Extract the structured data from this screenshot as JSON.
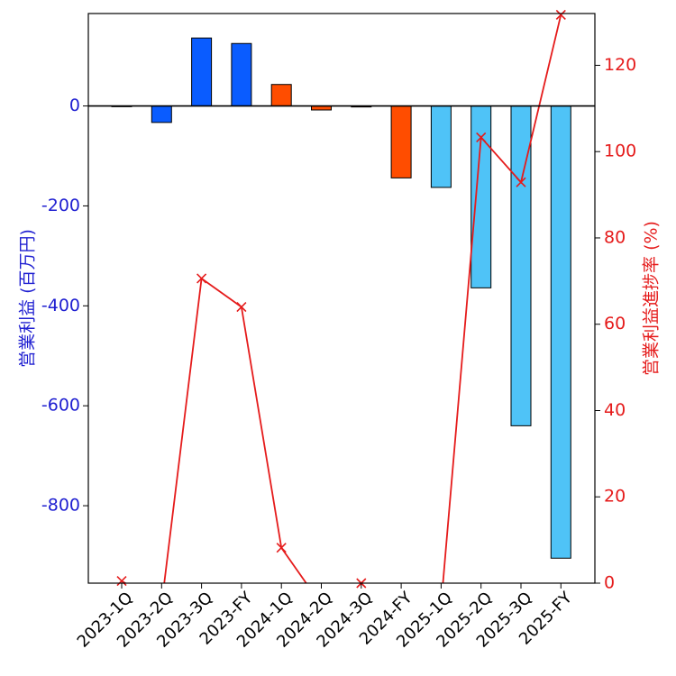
{
  "chart_data": {
    "type": "bar",
    "categories": [
      "2023-1Q",
      "2023-2Q",
      "2023-3Q",
      "2023-FY",
      "2024-1Q",
      "2024-2Q",
      "2024-3Q",
      "2024-FY",
      "2025-1Q",
      "2025-2Q",
      "2025-3Q",
      "2025-FY"
    ],
    "series": [
      {
        "axis": "left",
        "type": "bar",
        "values": [
          -1,
          -33,
          136,
          125,
          43,
          -8,
          -2,
          -144,
          -163,
          -364,
          -640,
          -905
        ],
        "colors": [
          "#0a5cff",
          "#0a5cff",
          "#0a5cff",
          "#0a5cff",
          "#ff4d00",
          "#ff4d00",
          "#ff4d00",
          "#ff4d00",
          "#4fc3f7",
          "#4fc3f7",
          "#4fc3f7",
          "#4fc3f7"
        ]
      },
      {
        "axis": "right",
        "type": "line",
        "marker": "x",
        "color": "#e51b1b",
        "values": [
          0.5,
          -5,
          70.6,
          64.0,
          8.2,
          -5,
          0,
          null,
          -5,
          103.3,
          92.9,
          131.7
        ]
      }
    ],
    "ylabel": "営業利益 (百万円)",
    "y2label": "営業利益進捗率 (%)",
    "ylim": [
      -955,
      185
    ],
    "y2lim": [
      0,
      132
    ],
    "yticks": [
      0,
      -200,
      -400,
      -600,
      -800
    ],
    "y2ticks": [
      0,
      20,
      40,
      60,
      80,
      100,
      120
    ],
    "left_axis_color": "#1f1fd1",
    "right_axis_color": "#e51b1b",
    "zero_line": true,
    "grid": false
  }
}
